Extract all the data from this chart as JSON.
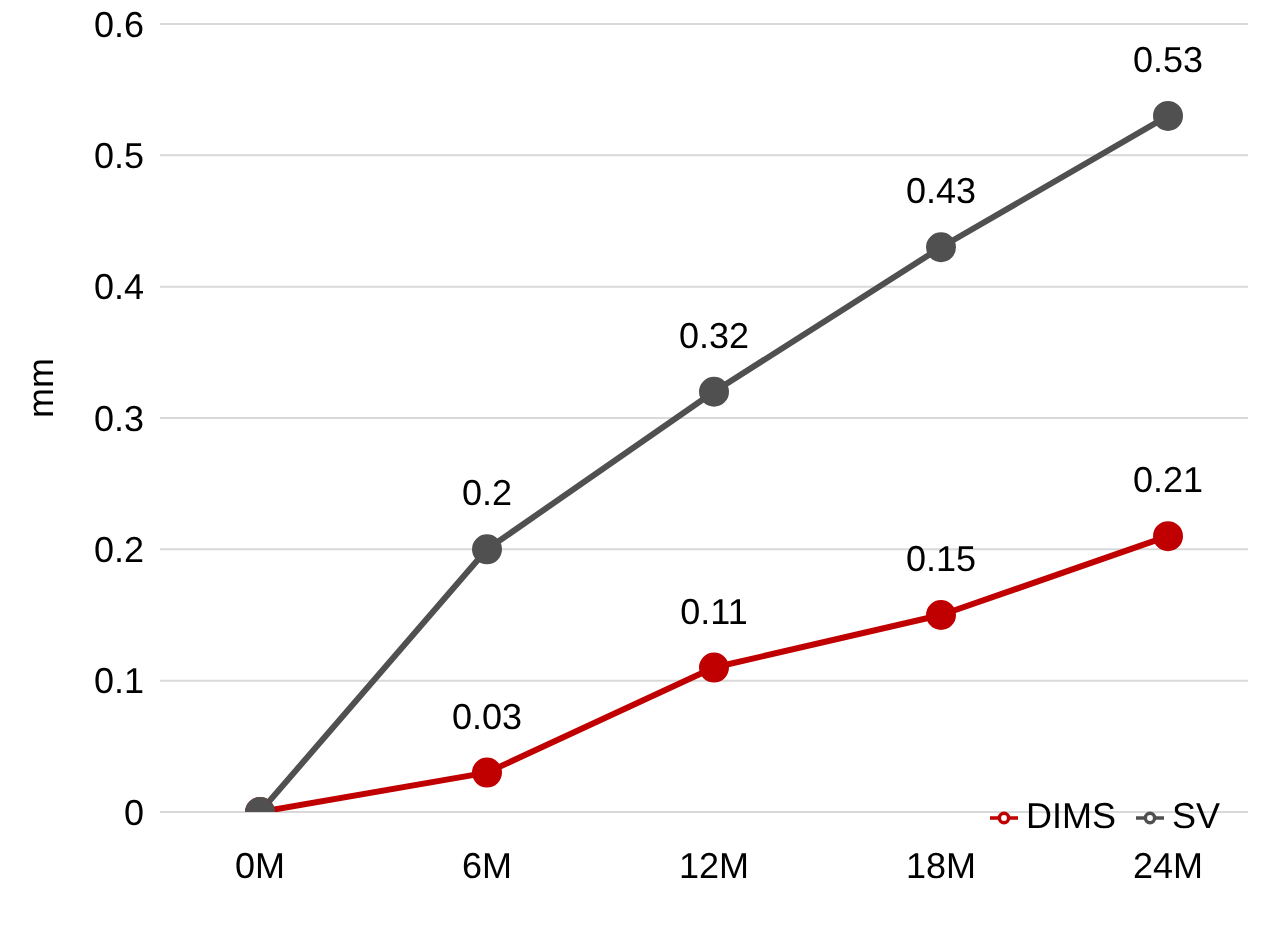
{
  "chart_data": {
    "type": "line",
    "ylabel": "mm",
    "categories": [
      "0M",
      "6M",
      "12M",
      "18M",
      "24M"
    ],
    "series": [
      {
        "name": "DIMS",
        "color": "#c00000",
        "values": [
          0,
          0.03,
          0.11,
          0.15,
          0.21
        ],
        "value_labels": [
          null,
          "0.03",
          "0.11",
          "0.15",
          "0.21"
        ]
      },
      {
        "name": "SV",
        "color": "#505050",
        "values": [
          0,
          0.2,
          0.32,
          0.43,
          0.53
        ],
        "value_labels": [
          null,
          "0.2",
          "0.32",
          "0.43",
          "0.53"
        ]
      }
    ],
    "ylim": [
      0,
      0.6
    ],
    "yticks": [
      0,
      0.1,
      0.2,
      0.3,
      0.4,
      0.5,
      0.6
    ],
    "grid": "y",
    "legend": "bottom right",
    "marker": "circle",
    "line_style": "solid"
  }
}
